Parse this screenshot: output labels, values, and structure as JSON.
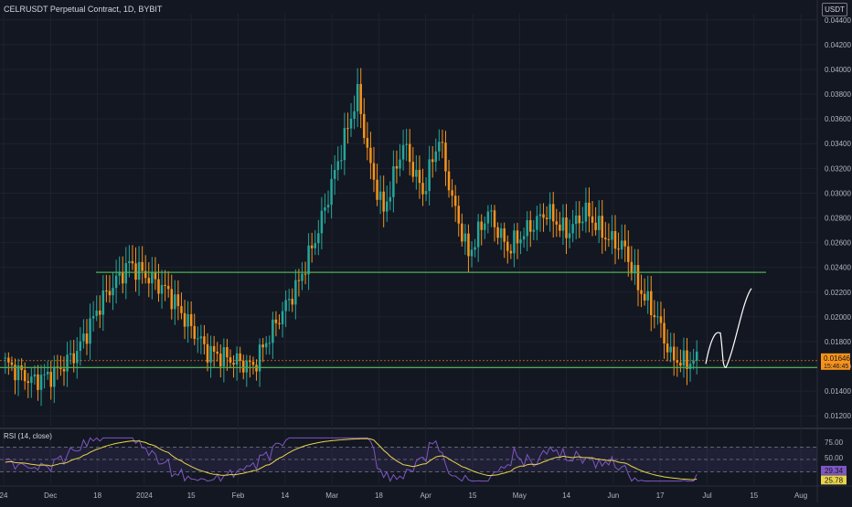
{
  "header": {
    "symbol": "CELRUSDT Perpetual Contract, 1D, BYBIT"
  },
  "currency_button": "USDT",
  "price_label": {
    "price": "0.01646",
    "countdown": "15:46:45",
    "color": "#f7931a"
  },
  "rsi_pane": {
    "title": "RSI (14, close)",
    "levels": [
      70,
      50,
      30
    ],
    "value_labels": [
      "75.00",
      "50.00",
      "29.34",
      "25.78"
    ]
  },
  "colors": {
    "up": "#26a69a",
    "down": "#f7931a",
    "support": "#4caf50",
    "rsi": "#7e57c2",
    "rsi_ma": "#e8d44d"
  },
  "chart_data": {
    "type": "candlestick",
    "title": "CELRUSDT Perpetual Contract, 1D, BYBIT",
    "y_unit": "USDT",
    "ylim": [
      0.0115,
      0.0445
    ],
    "y_ticks": [
      "0.04400",
      "0.04200",
      "0.04000",
      "0.03800",
      "0.03600",
      "0.03400",
      "0.03200",
      "0.03000",
      "0.02800",
      "0.02600",
      "0.02400",
      "0.02200",
      "0.02000",
      "0.01800",
      "0.01600",
      "0.01400",
      "0.01200"
    ],
    "x_ticks": [
      "24",
      "Dec",
      "18",
      "2024",
      "15",
      "Feb",
      "14",
      "Mar",
      "18",
      "Apr",
      "15",
      "May",
      "14",
      "Jun",
      "17",
      "Jul",
      "15",
      "Aug"
    ],
    "support_lines": [
      0.0236,
      0.0159
    ],
    "price_keypoints": [
      [
        0,
        0.0163
      ],
      [
        8,
        0.0148
      ],
      [
        15,
        0.0154
      ],
      [
        22,
        0.0172
      ],
      [
        30,
        0.0215
      ],
      [
        38,
        0.0243
      ],
      [
        45,
        0.023
      ],
      [
        50,
        0.022
      ],
      [
        56,
        0.0195
      ],
      [
        62,
        0.0172
      ],
      [
        70,
        0.0165
      ],
      [
        76,
        0.016
      ],
      [
        82,
        0.019
      ],
      [
        90,
        0.0228
      ],
      [
        96,
        0.027
      ],
      [
        103,
        0.0335
      ],
      [
        108,
        0.038
      ],
      [
        112,
        0.032
      ],
      [
        116,
        0.0285
      ],
      [
        122,
        0.034
      ],
      [
        128,
        0.03
      ],
      [
        133,
        0.0345
      ],
      [
        137,
        0.0295
      ],
      [
        142,
        0.025
      ],
      [
        148,
        0.0285
      ],
      [
        154,
        0.0255
      ],
      [
        160,
        0.027
      ],
      [
        166,
        0.0285
      ],
      [
        172,
        0.0268
      ],
      [
        178,
        0.0285
      ],
      [
        184,
        0.0265
      ],
      [
        190,
        0.0255
      ],
      [
        194,
        0.0225
      ],
      [
        200,
        0.0198
      ],
      [
        204,
        0.0168
      ],
      [
        208,
        0.0163
      ],
      [
        212,
        0.0165
      ]
    ],
    "projection": [
      [
        0.0162
      ],
      [
        0.0187
      ],
      [
        0.0159
      ],
      [
        0.0223
      ]
    ],
    "rsi_current": 29.34,
    "rsi_ma_current": 25.78
  }
}
